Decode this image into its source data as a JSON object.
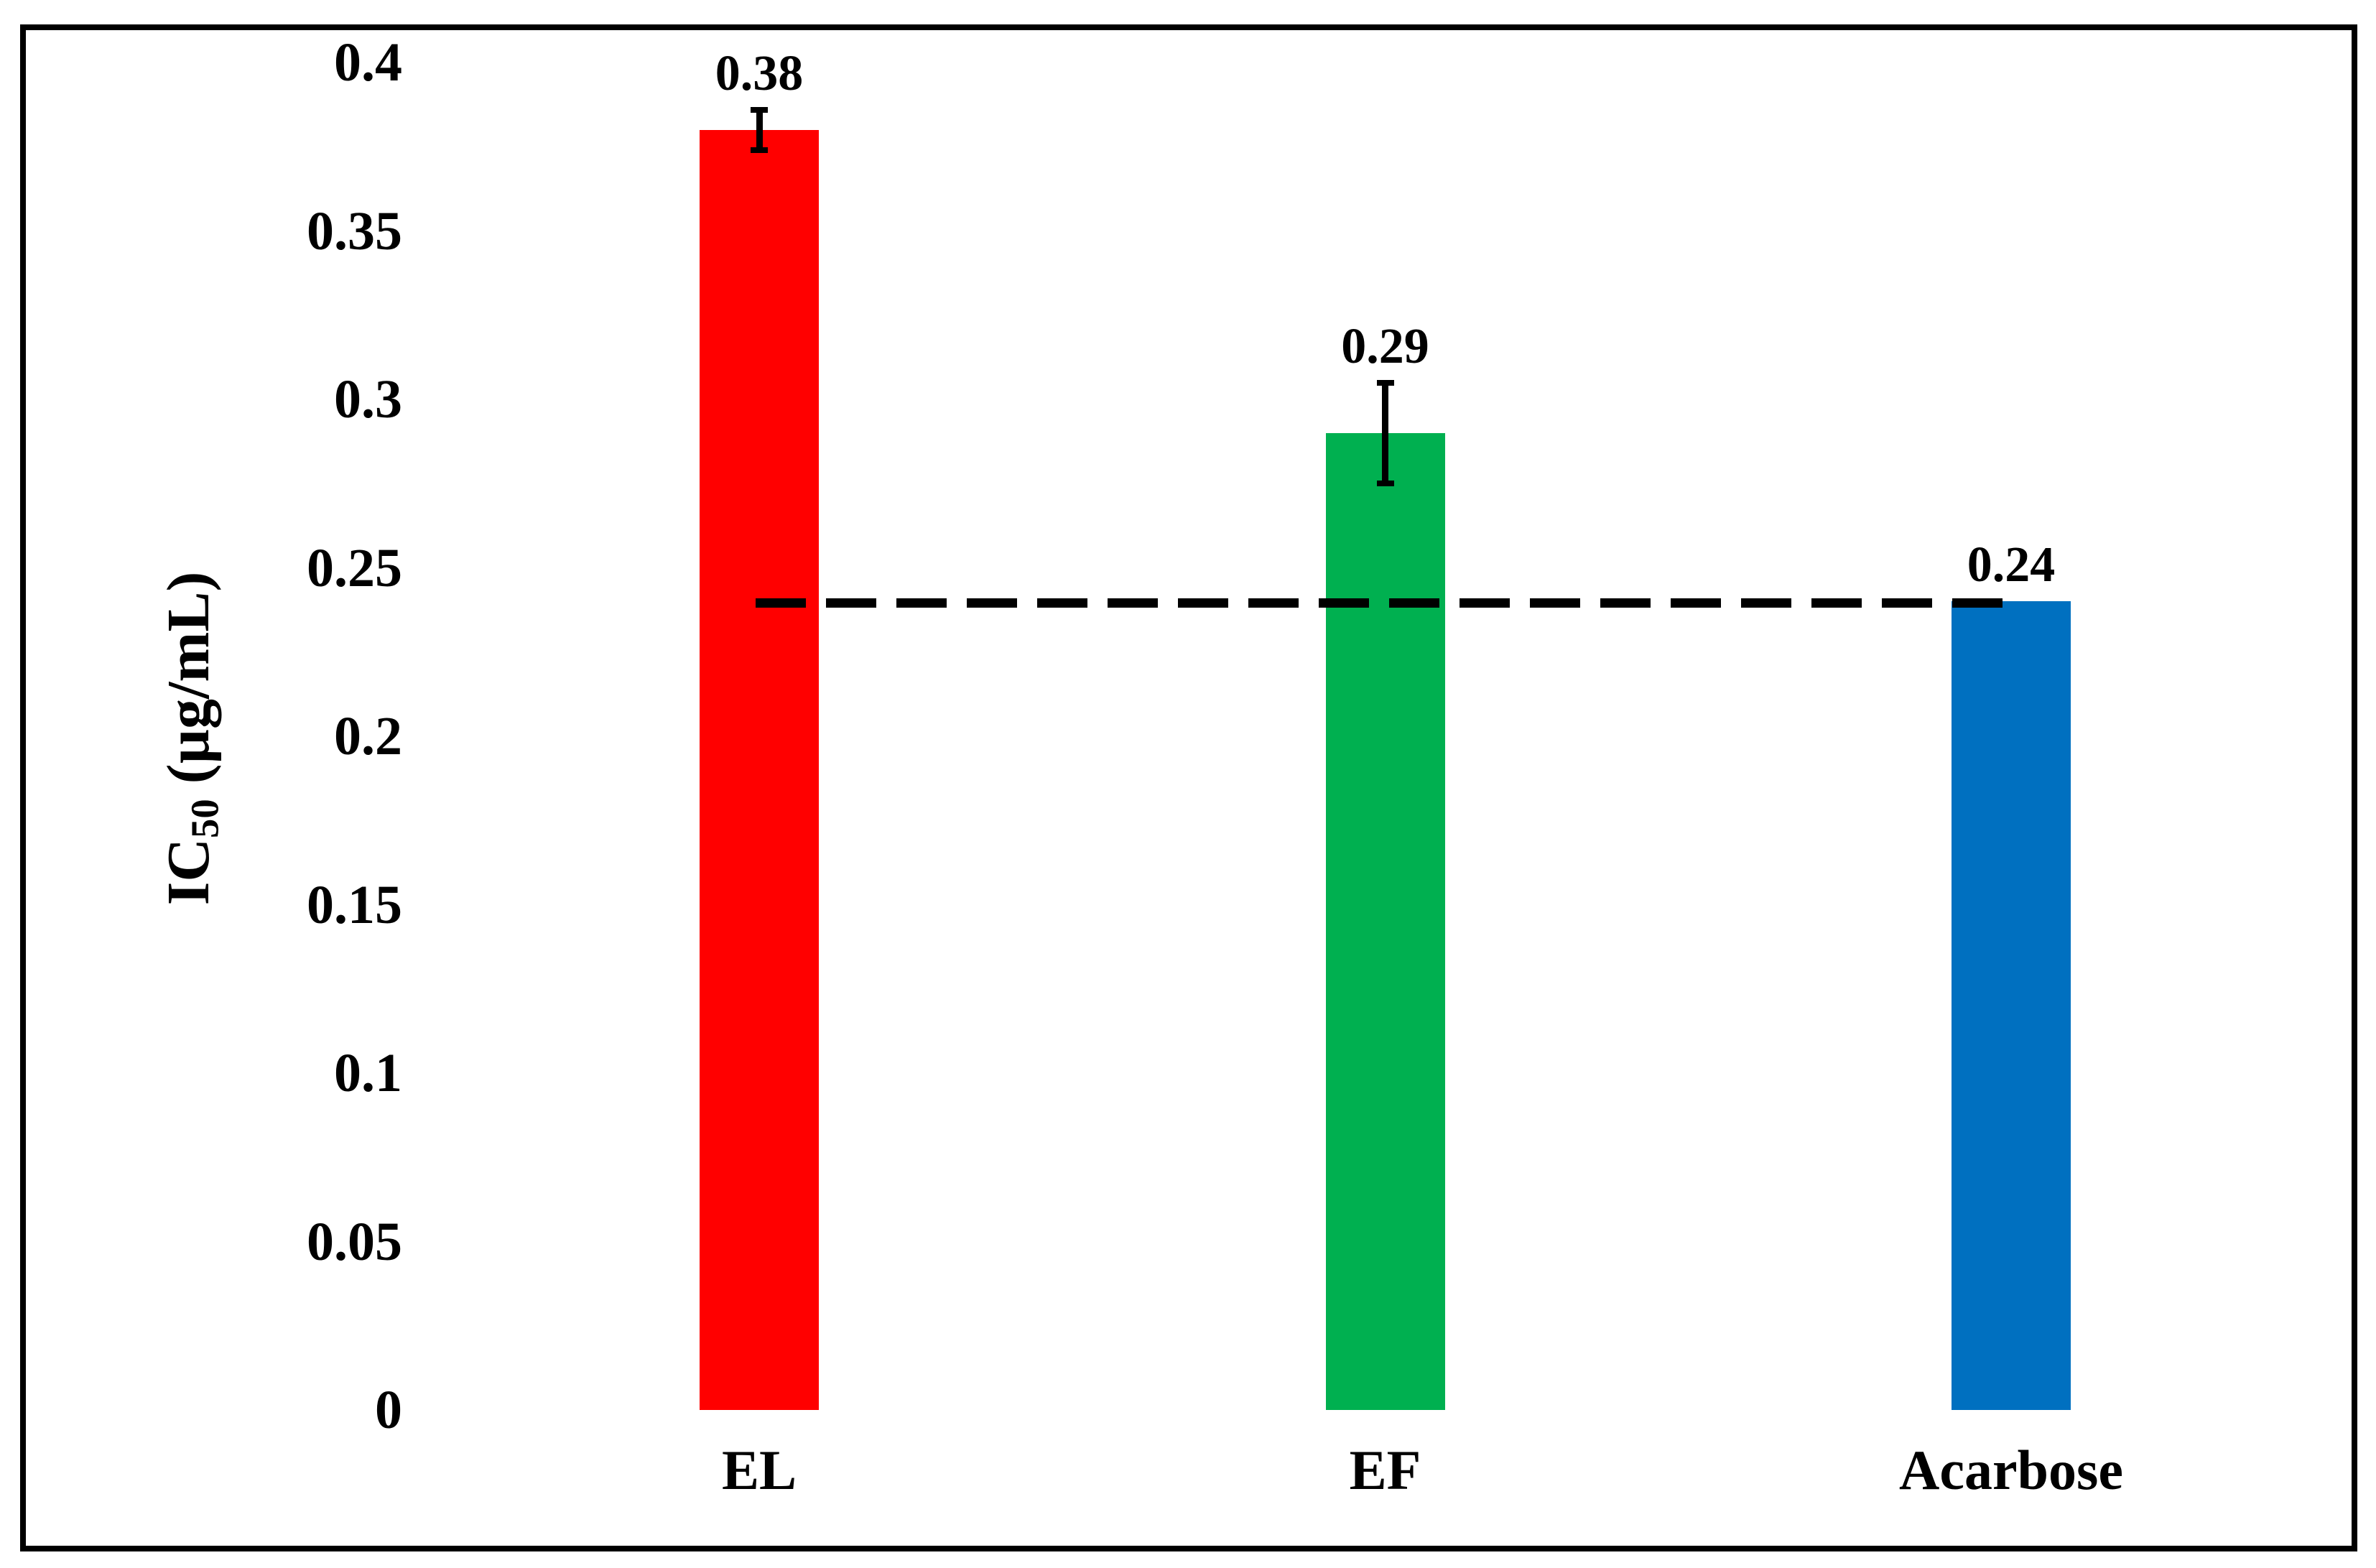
{
  "figure": {
    "y_axis_title": {
      "main": "IC",
      "sub": "50",
      "unit": " (µg/mL)"
    }
  },
  "chart_data": {
    "type": "bar",
    "categories": [
      "EL",
      "EF",
      "Acarbose"
    ],
    "values": [
      0.38,
      0.29,
      0.24
    ],
    "value_labels": [
      "0.38",
      "0.29",
      "0.24"
    ],
    "errors": [
      0.006,
      0.015,
      0
    ],
    "bar_colors": [
      "#FF0000",
      "#00B050",
      "#0070C0"
    ],
    "title": "",
    "xlabel": "",
    "ylabel": "IC50 (µg/mL)",
    "ylim": [
      0,
      0.4
    ],
    "yticks": [
      0.4,
      0.35,
      0.3,
      0.25,
      0.2,
      0.15,
      0.1,
      0.05,
      0
    ],
    "ytick_labels": [
      "0.4",
      "0.35",
      "0.3",
      "0.25",
      "0.2",
      "0.15",
      "0.1",
      "0.05",
      "0"
    ],
    "reference_line": {
      "value": 0.24,
      "style": "dashed",
      "color": "#000000"
    },
    "grid": false,
    "legend": false,
    "axis_lines": false,
    "error_bar_color": "#000000",
    "frame_border_color": "#000000"
  }
}
